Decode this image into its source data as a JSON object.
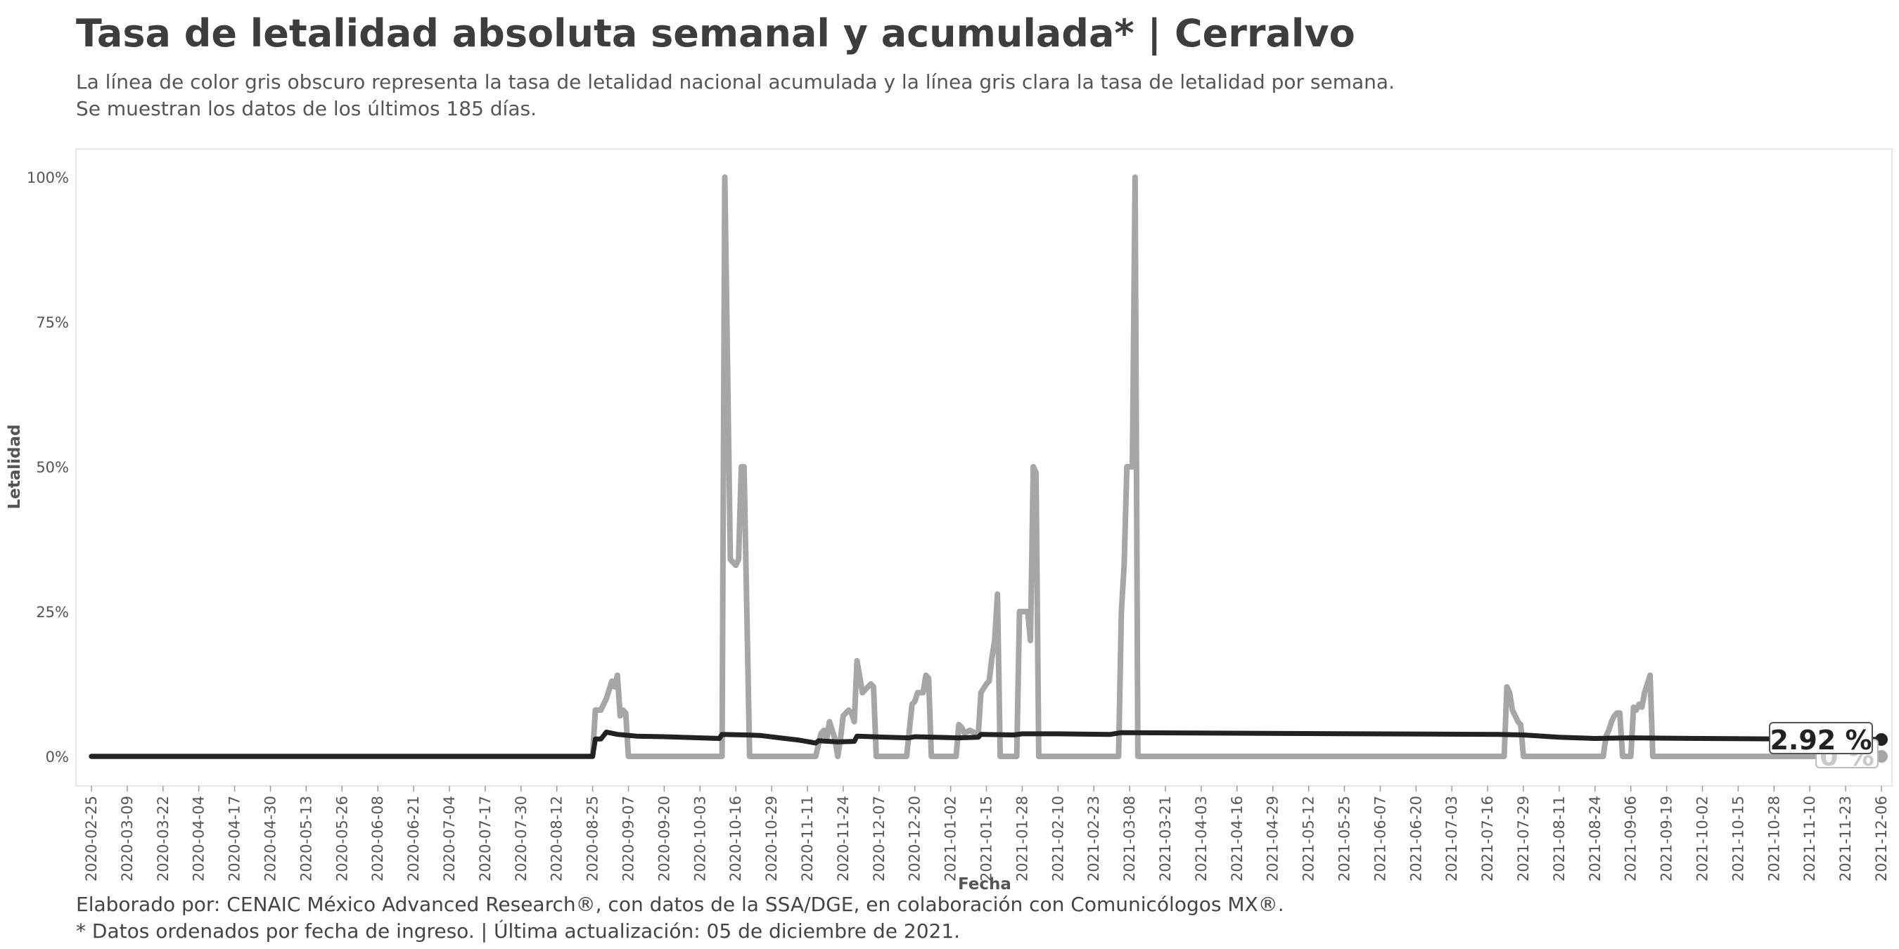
{
  "header": {
    "title": "Tasa de letalidad absoluta semanal y acumulada* | Cerralvo",
    "subtitle_line1": "La línea de color gris obscuro representa la tasa de letalidad nacional acumulada y la línea gris clara la tasa de letalidad por semana.",
    "subtitle_line2": "Se muestran los datos de los últimos 185 días."
  },
  "footer": {
    "line1": "Elaborado por: CENAIC México Advanced Research®, con datos de la SSA/DGE, en colaboración con Comunicólogos MX®.",
    "line2": "* Datos ordenados por fecha de ingreso. | Última actualización: 05 de diciembre de 2021."
  },
  "colors": {
    "accumulated": "#222222",
    "weekly": "#a6a6a6",
    "panel_border": "#e6e6e6"
  },
  "chart_data": {
    "type": "line",
    "title": "Tasa de letalidad absoluta semanal y acumulada* | Cerralvo",
    "xlabel": "Fecha",
    "ylabel": "Letalidad",
    "x_range": [
      "2020-02-25",
      "2021-12-06"
    ],
    "ylim": [
      0,
      100
    ],
    "y_ticks": [
      0,
      25,
      50,
      75,
      100
    ],
    "y_tick_labels": [
      "0%",
      "25%",
      "50%",
      "75%",
      "100%"
    ],
    "x_tick_labels": [
      "2020-02-25",
      "2020-03-09",
      "2020-03-22",
      "2020-04-04",
      "2020-04-17",
      "2020-04-30",
      "2020-05-13",
      "2020-05-26",
      "2020-06-08",
      "2020-06-21",
      "2020-07-04",
      "2020-07-17",
      "2020-07-30",
      "2020-08-12",
      "2020-08-25",
      "2020-09-07",
      "2020-09-20",
      "2020-10-03",
      "2020-10-16",
      "2020-10-29",
      "2020-11-11",
      "2020-11-24",
      "2020-12-07",
      "2020-12-20",
      "2021-01-02",
      "2021-01-15",
      "2021-01-28",
      "2021-02-10",
      "2021-02-23",
      "2021-03-08",
      "2021-03-21",
      "2021-04-03",
      "2021-04-16",
      "2021-04-29",
      "2021-05-12",
      "2021-05-25",
      "2021-06-07",
      "2021-06-20",
      "2021-07-03",
      "2021-07-16",
      "2021-07-29",
      "2021-08-11",
      "2021-08-24",
      "2021-09-06",
      "2021-09-19",
      "2021-10-02",
      "2021-10-15",
      "2021-10-28",
      "2021-11-10",
      "2021-11-23",
      "2021-12-06"
    ],
    "grid": false,
    "legend": "none",
    "series": [
      {
        "key": "weekly",
        "color": "#a6a6a6",
        "points": [
          [
            "2020-02-25",
            0
          ],
          [
            "2020-08-25",
            0
          ],
          [
            "2020-08-26",
            8
          ],
          [
            "2020-08-28",
            8
          ],
          [
            "2020-08-30",
            10
          ],
          [
            "2020-09-01",
            13
          ],
          [
            "2020-09-02",
            12
          ],
          [
            "2020-09-03",
            14
          ],
          [
            "2020-09-04",
            7
          ],
          [
            "2020-09-05",
            8
          ],
          [
            "2020-09-06",
            7.5
          ],
          [
            "2020-09-07",
            0
          ],
          [
            "2020-10-11",
            0
          ],
          [
            "2020-10-12",
            100
          ],
          [
            "2020-10-14",
            34
          ],
          [
            "2020-10-16",
            33
          ],
          [
            "2020-10-17",
            34
          ],
          [
            "2020-10-18",
            50
          ],
          [
            "2020-10-19",
            50
          ],
          [
            "2020-10-21",
            0
          ],
          [
            "2020-11-14",
            0
          ],
          [
            "2020-11-16",
            4
          ],
          [
            "2020-11-17",
            4.5
          ],
          [
            "2020-11-18",
            3
          ],
          [
            "2020-11-19",
            6
          ],
          [
            "2020-11-21",
            3
          ],
          [
            "2020-11-22",
            0
          ],
          [
            "2020-11-23",
            3
          ],
          [
            "2020-11-24",
            7
          ],
          [
            "2020-11-26",
            8
          ],
          [
            "2020-11-27",
            7.5
          ],
          [
            "2020-11-28",
            6
          ],
          [
            "2020-11-29",
            16.5
          ],
          [
            "2020-12-01",
            11
          ],
          [
            "2020-12-02",
            11.5
          ],
          [
            "2020-12-04",
            12.5
          ],
          [
            "2020-12-05",
            12
          ],
          [
            "2020-12-06",
            0
          ],
          [
            "2020-12-17",
            0
          ],
          [
            "2020-12-19",
            9
          ],
          [
            "2020-12-20",
            9.5
          ],
          [
            "2020-12-21",
            11
          ],
          [
            "2020-12-23",
            11
          ],
          [
            "2020-12-24",
            14
          ],
          [
            "2020-12-25",
            13.5
          ],
          [
            "2020-12-26",
            0
          ],
          [
            "2021-01-04",
            0
          ],
          [
            "2021-01-05",
            5.5
          ],
          [
            "2021-01-06",
            5
          ],
          [
            "2021-01-07",
            4
          ],
          [
            "2021-01-09",
            4.5
          ],
          [
            "2021-01-11",
            4
          ],
          [
            "2021-01-12",
            3.5
          ],
          [
            "2021-01-13",
            11
          ],
          [
            "2021-01-15",
            12.5
          ],
          [
            "2021-01-16",
            13
          ],
          [
            "2021-01-17",
            17
          ],
          [
            "2021-01-18",
            20
          ],
          [
            "2021-01-19",
            28
          ],
          [
            "2021-01-20",
            0
          ],
          [
            "2021-01-26",
            0
          ],
          [
            "2021-01-27",
            25
          ],
          [
            "2021-01-30",
            25
          ],
          [
            "2021-01-31",
            20
          ],
          [
            "2021-02-01",
            50
          ],
          [
            "2021-02-02",
            49
          ],
          [
            "2021-02-03",
            0
          ],
          [
            "2021-03-04",
            0
          ],
          [
            "2021-03-05",
            25
          ],
          [
            "2021-03-06",
            33
          ],
          [
            "2021-03-07",
            50
          ],
          [
            "2021-03-09",
            50
          ],
          [
            "2021-03-10",
            100
          ],
          [
            "2021-03-11",
            0
          ],
          [
            "2021-07-22",
            0
          ],
          [
            "2021-07-23",
            12
          ],
          [
            "2021-07-24",
            11
          ],
          [
            "2021-07-25",
            8
          ],
          [
            "2021-07-26",
            7
          ],
          [
            "2021-07-27",
            6
          ],
          [
            "2021-07-28",
            5.5
          ],
          [
            "2021-07-29",
            0
          ],
          [
            "2021-08-27",
            0
          ],
          [
            "2021-08-28",
            3.5
          ],
          [
            "2021-08-29",
            4.5
          ],
          [
            "2021-08-30",
            6
          ],
          [
            "2021-08-31",
            7
          ],
          [
            "2021-09-01",
            7.5
          ],
          [
            "2021-09-02",
            7.5
          ],
          [
            "2021-09-03",
            0
          ],
          [
            "2021-09-06",
            0
          ],
          [
            "2021-09-07",
            8.5
          ],
          [
            "2021-09-08",
            8
          ],
          [
            "2021-09-09",
            9
          ],
          [
            "2021-09-10",
            8.5
          ],
          [
            "2021-09-11",
            11
          ],
          [
            "2021-09-13",
            14
          ],
          [
            "2021-09-14",
            0
          ],
          [
            "2021-12-06",
            0
          ]
        ],
        "end_value": 0,
        "end_label": "0 %"
      },
      {
        "key": "accumulated",
        "color": "#222222",
        "points": [
          [
            "2020-02-25",
            0
          ],
          [
            "2020-08-25",
            0
          ],
          [
            "2020-08-26",
            3
          ],
          [
            "2020-08-28",
            3
          ],
          [
            "2020-08-30",
            4.2
          ],
          [
            "2020-09-03",
            3.8
          ],
          [
            "2020-09-10",
            3.5
          ],
          [
            "2020-09-20",
            3.4
          ],
          [
            "2020-10-03",
            3.2
          ],
          [
            "2020-10-10",
            3.1
          ],
          [
            "2020-10-11",
            3.8
          ],
          [
            "2020-10-20",
            3.7
          ],
          [
            "2020-10-25",
            3.6
          ],
          [
            "2020-11-01",
            3.2
          ],
          [
            "2020-11-08",
            2.8
          ],
          [
            "2020-11-14",
            2.3
          ],
          [
            "2020-11-15",
            2.7
          ],
          [
            "2020-11-22",
            2.5
          ],
          [
            "2020-11-28",
            2.6
          ],
          [
            "2020-11-29",
            3.5
          ],
          [
            "2020-12-10",
            3.3
          ],
          [
            "2020-12-18",
            3.2
          ],
          [
            "2020-12-20",
            3.4
          ],
          [
            "2021-01-05",
            3.2
          ],
          [
            "2021-01-12",
            3.3
          ],
          [
            "2021-01-13",
            3.8
          ],
          [
            "2021-01-25",
            3.7
          ],
          [
            "2021-01-28",
            3.9
          ],
          [
            "2021-02-10",
            3.9
          ],
          [
            "2021-03-01",
            3.8
          ],
          [
            "2021-03-05",
            4.1
          ],
          [
            "2021-04-15",
            4.0
          ],
          [
            "2021-06-01",
            3.9
          ],
          [
            "2021-07-20",
            3.8
          ],
          [
            "2021-07-29",
            3.7
          ],
          [
            "2021-08-11",
            3.3
          ],
          [
            "2021-08-24",
            3.1
          ],
          [
            "2021-09-06",
            3.2
          ],
          [
            "2021-10-02",
            3.1
          ],
          [
            "2021-11-01",
            3.0
          ],
          [
            "2021-12-06",
            2.92
          ]
        ],
        "end_value": 2.92,
        "end_label": "2.92 %"
      }
    ]
  }
}
